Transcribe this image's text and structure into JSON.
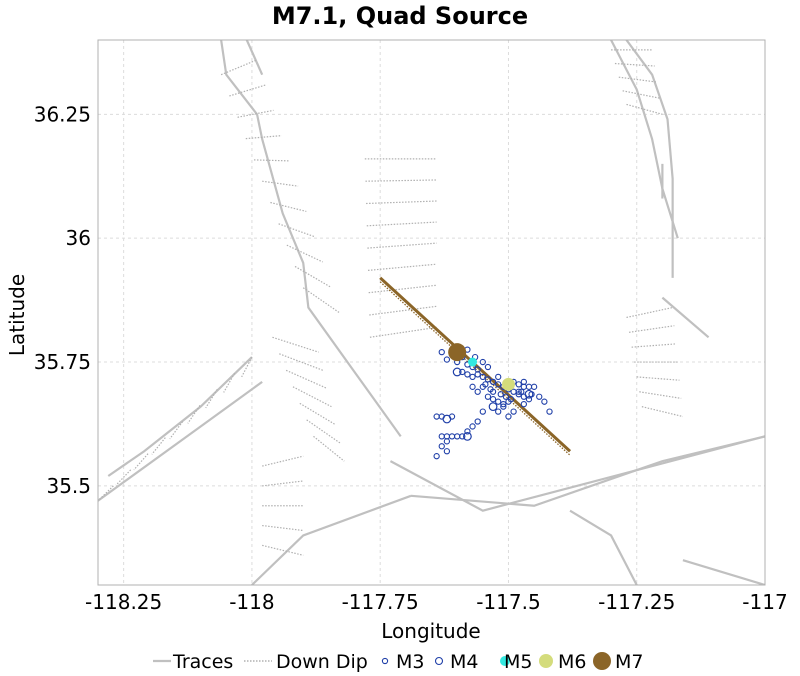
{
  "chart_data": {
    "type": "scatter",
    "title": "M7.1, Quad Source",
    "xlabel": "Longitude",
    "ylabel": "Latitude",
    "xlim": [
      -118.3,
      -117.0
    ],
    "ylim": [
      35.3,
      36.4
    ],
    "xticks": [
      -118.25,
      -118,
      -117.75,
      -117.5,
      -117.25,
      -117
    ],
    "xtick_labels": [
      "-118.25",
      "-118",
      "-117.75",
      "-117.5",
      "-117.25",
      "-117"
    ],
    "yticks": [
      35.5,
      35.75,
      36,
      36.25
    ],
    "ytick_labels": [
      "35.5",
      "35.75",
      "36",
      "36.25"
    ],
    "grid": true,
    "legend_position": "bottom",
    "legend": [
      {
        "label": "Traces",
        "kind": "line",
        "color": "#c0c0c0"
      },
      {
        "label": "Down Dip",
        "kind": "dotted",
        "color": "#b0b0b0"
      },
      {
        "label": "M3",
        "kind": "marker",
        "color": "#1f3fa8"
      },
      {
        "label": "M4",
        "kind": "marker",
        "color": "#1f3fa8"
      },
      {
        "label": "M5",
        "kind": "marker",
        "color": "#33e8e0"
      },
      {
        "label": "M6",
        "kind": "marker",
        "color": "#d4dc7c"
      },
      {
        "label": "M7",
        "kind": "marker",
        "color": "#8b6528"
      }
    ],
    "colors": {
      "trace": "#c0c0c0",
      "downdip": "#b0b0b0",
      "rupture": "#8b6528",
      "M3": "#1f3fa8",
      "M5": "#33e8e0",
      "M6": "#d4dc7c",
      "M7": "#8b6528"
    },
    "rupture_trace": [
      [
        -117.75,
        35.92
      ],
      [
        -117.38,
        35.57
      ]
    ],
    "events": {
      "M7": [
        [
          -117.6,
          35.77
        ]
      ],
      "M6": [
        [
          -117.5,
          35.705
        ]
      ],
      "M5": [
        [
          -117.57,
          35.75
        ]
      ],
      "M4": [
        [
          -117.62,
          35.635
        ],
        [
          -117.58,
          35.6
        ],
        [
          -117.53,
          35.66
        ],
        [
          -117.46,
          35.685
        ],
        [
          -117.6,
          35.73
        ]
      ],
      "M3": [
        [
          -117.6,
          35.78
        ],
        [
          -117.61,
          35.77
        ],
        [
          -117.59,
          35.76
        ],
        [
          -117.58,
          35.745
        ],
        [
          -117.57,
          35.74
        ],
        [
          -117.56,
          35.735
        ],
        [
          -117.56,
          35.725
        ],
        [
          -117.55,
          35.72
        ],
        [
          -117.54,
          35.715
        ],
        [
          -117.53,
          35.71
        ],
        [
          -117.52,
          35.705
        ],
        [
          -117.51,
          35.7
        ],
        [
          -117.5,
          35.695
        ],
        [
          -117.49,
          35.69
        ],
        [
          -117.48,
          35.685
        ],
        [
          -117.47,
          35.68
        ],
        [
          -117.46,
          35.675
        ],
        [
          -117.47,
          35.7
        ],
        [
          -117.48,
          35.705
        ],
        [
          -117.49,
          35.71
        ],
        [
          -117.47,
          35.665
        ],
        [
          -117.5,
          35.67
        ],
        [
          -117.51,
          35.665
        ],
        [
          -117.52,
          35.67
        ],
        [
          -117.53,
          35.675
        ],
        [
          -117.54,
          35.68
        ],
        [
          -117.55,
          35.7
        ],
        [
          -117.56,
          35.69
        ],
        [
          -117.57,
          35.7
        ],
        [
          -117.57,
          35.72
        ],
        [
          -117.58,
          35.725
        ],
        [
          -117.59,
          35.73
        ],
        [
          -117.6,
          35.75
        ],
        [
          -117.62,
          35.755
        ],
        [
          -117.63,
          35.77
        ],
        [
          -117.55,
          35.65
        ],
        [
          -117.56,
          35.63
        ],
        [
          -117.57,
          35.62
        ],
        [
          -117.58,
          35.61
        ],
        [
          -117.59,
          35.6
        ],
        [
          -117.6,
          35.6
        ],
        [
          -117.61,
          35.6
        ],
        [
          -117.62,
          35.6
        ],
        [
          -117.63,
          35.6
        ],
        [
          -117.61,
          35.64
        ],
        [
          -117.63,
          35.64
        ],
        [
          -117.64,
          35.64
        ],
        [
          -117.62,
          35.59
        ],
        [
          -117.63,
          35.58
        ],
        [
          -117.62,
          35.57
        ],
        [
          -117.64,
          35.56
        ],
        [
          -117.52,
          35.65
        ],
        [
          -117.51,
          35.66
        ],
        [
          -117.5,
          35.64
        ],
        [
          -117.49,
          35.65
        ],
        [
          -117.48,
          35.69
        ],
        [
          -117.45,
          35.7
        ],
        [
          -117.44,
          35.68
        ],
        [
          -117.43,
          35.67
        ],
        [
          -117.46,
          35.7
        ],
        [
          -117.47,
          35.71
        ],
        [
          -117.42,
          35.65
        ],
        [
          -117.53,
          35.69
        ],
        [
          -117.52,
          35.72
        ],
        [
          -117.54,
          35.74
        ],
        [
          -117.55,
          35.75
        ],
        [
          -117.565,
          35.76
        ],
        [
          -117.58,
          35.775
        ],
        [
          -117.535,
          35.695
        ],
        [
          -117.545,
          35.705
        ],
        [
          -117.515,
          35.685
        ],
        [
          -117.495,
          35.675
        ],
        [
          -117.505,
          35.68
        ],
        [
          -117.475,
          35.69
        ],
        [
          -117.455,
          35.685
        ]
      ]
    },
    "traces": [
      [
        [
          -118.28,
          35.52
        ],
        [
          -118.21,
          35.57
        ],
        [
          -118.1,
          35.66
        ],
        [
          -118.0,
          35.76
        ]
      ],
      [
        [
          -118.3,
          35.47
        ],
        [
          -118.1,
          35.62
        ],
        [
          -118.02,
          35.68
        ],
        [
          -117.98,
          35.71
        ]
      ],
      [
        [
          -118.06,
          36.4
        ],
        [
          -118.05,
          36.33
        ],
        [
          -117.99,
          36.25
        ],
        [
          -117.98,
          36.2
        ],
        [
          -117.94,
          36.05
        ],
        [
          -117.9,
          35.95
        ],
        [
          -117.89,
          35.86
        ],
        [
          -117.8,
          35.73
        ],
        [
          -117.71,
          35.6
        ]
      ],
      [
        [
          -118.01,
          36.4
        ],
        [
          -117.98,
          36.33
        ]
      ],
      [
        [
          -117.27,
          36.4
        ],
        [
          -117.22,
          36.33
        ],
        [
          -117.19,
          36.24
        ],
        [
          -117.18,
          36.12
        ],
        [
          -117.18,
          35.97
        ],
        [
          -117.18,
          35.92
        ]
      ],
      [
        [
          -117.2,
          35.88
        ],
        [
          -117.11,
          35.8
        ]
      ],
      [
        [
          -117.3,
          36.4
        ],
        [
          -117.25,
          36.3
        ],
        [
          -117.22,
          36.2
        ],
        [
          -117.2,
          36.1
        ],
        [
          -117.17,
          36.0
        ]
      ],
      [
        [
          -117.2,
          36.15
        ],
        [
          -117.2,
          36.08
        ]
      ],
      [
        [
          -117.73,
          35.55
        ],
        [
          -117.55,
          35.45
        ],
        [
          -117.0,
          35.6
        ]
      ],
      [
        [
          -117.69,
          35.48
        ],
        [
          -117.45,
          35.46
        ],
        [
          -117.2,
          35.55
        ],
        [
          -117.0,
          35.6
        ]
      ],
      [
        [
          -118.0,
          35.3
        ],
        [
          -117.9,
          35.4
        ],
        [
          -117.69,
          35.48
        ]
      ],
      [
        [
          -117.38,
          35.45
        ],
        [
          -117.3,
          35.4
        ],
        [
          -117.25,
          35.3
        ]
      ],
      [
        [
          -117.16,
          35.35
        ],
        [
          -117.0,
          35.3
        ]
      ]
    ]
  }
}
